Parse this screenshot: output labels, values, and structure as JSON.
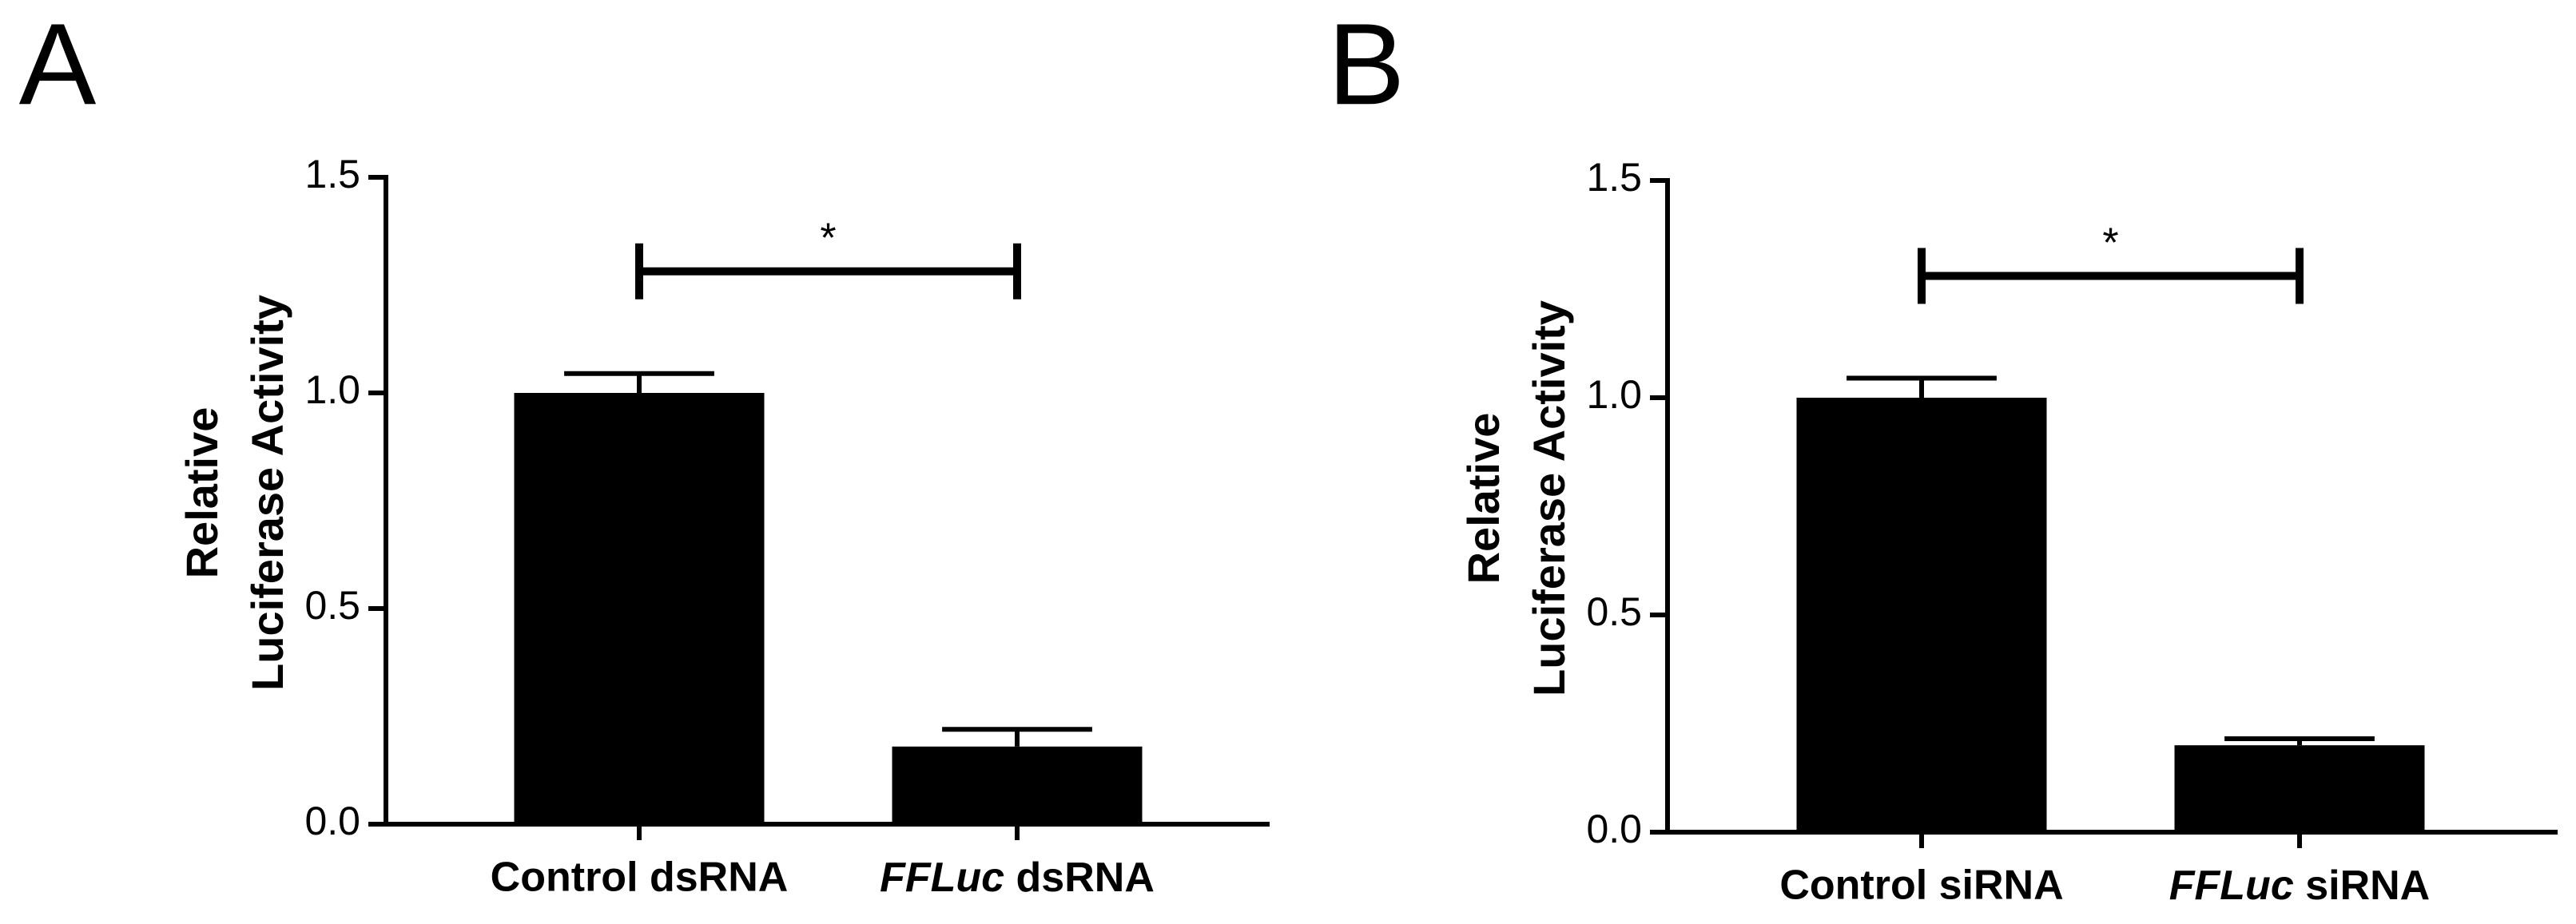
{
  "chart_data": [
    {
      "type": "bar",
      "panel": "A",
      "y_label": [
        "Relative",
        "Luciferase Activity"
      ],
      "categories": [
        "Control dsRNA",
        "FFLuc dsRNA"
      ],
      "italic_first_word": [
        false,
        true
      ],
      "values": [
        1.0,
        0.18
      ],
      "errors": [
        0.045,
        0.04
      ],
      "color": "#000000",
      "ylim": [
        0,
        1.5
      ],
      "yticks": [
        {
          "value": 0,
          "label": "0.0"
        },
        {
          "value": 0.5,
          "label": "0.5"
        },
        {
          "value": 1,
          "label": "1.0"
        },
        {
          "value": 1.5,
          "label": "1.5"
        }
      ],
      "significance": "*"
    },
    {
      "type": "bar",
      "panel": "B",
      "y_label": [
        "Relative",
        "Luciferase Activity"
      ],
      "categories": [
        "Control siRNA",
        "FFLuc siRNA"
      ],
      "italic_first_word": [
        false,
        true
      ],
      "values": [
        1.0,
        0.2
      ],
      "errors": [
        0.045,
        0.015
      ],
      "color": "#000000",
      "ylim": [
        0,
        1.5
      ],
      "yticks": [
        {
          "value": 0,
          "label": "0.0"
        },
        {
          "value": 0.5,
          "label": "0.5"
        },
        {
          "value": 1,
          "label": "1.0"
        },
        {
          "value": 1.5,
          "label": "1.5"
        }
      ],
      "significance": "*"
    }
  ]
}
